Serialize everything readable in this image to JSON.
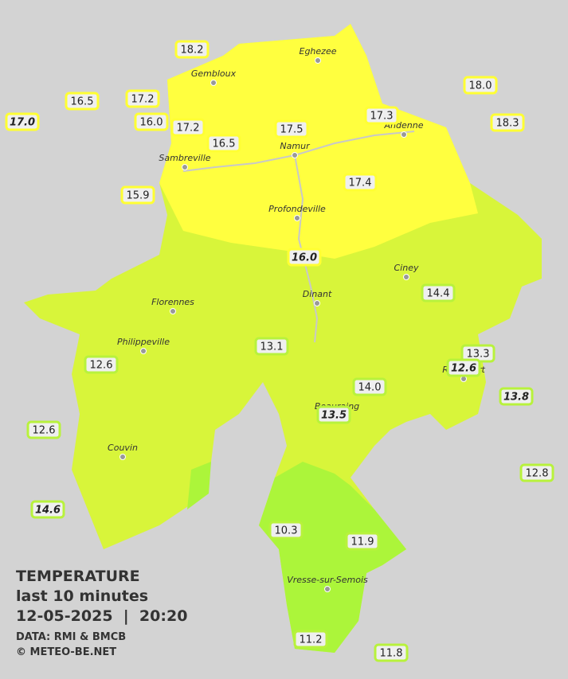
{
  "legend": {
    "title": "TEMPERATURE",
    "period": "last 10 minutes",
    "datetime": "12-05-2025  |  20:20",
    "source": "DATA: RMI & BMCB",
    "copyright": "© METEO-BE.NET"
  },
  "towns": [
    "Eghezee",
    "Gembloux",
    "Andenne",
    "Namur",
    "Sambreville",
    "Profondeville",
    "Ciney",
    "Dinant",
    "Florennes",
    "Philippeville",
    "Rochefort",
    "Beauraing",
    "Couvin",
    "Vresse-sur-Semois"
  ],
  "stations": [
    {
      "text": "18.2"
    },
    {
      "text": "16.5"
    },
    {
      "text": "17.0",
      "italic": true
    },
    {
      "text": "17.2"
    },
    {
      "text": "16.0"
    },
    {
      "text": "17.2"
    },
    {
      "text": "16.5"
    },
    {
      "text": "17.5"
    },
    {
      "text": "17.3"
    },
    {
      "text": "18.0"
    },
    {
      "text": "18.3"
    },
    {
      "text": "15.9"
    },
    {
      "text": "17.4"
    },
    {
      "text": "16.0",
      "italic": true
    },
    {
      "text": "14.4"
    },
    {
      "text": "13.1"
    },
    {
      "text": "13.3"
    },
    {
      "text": "12.6",
      "italic": true
    },
    {
      "text": "12.6"
    },
    {
      "text": "14.0"
    },
    {
      "text": "13.5",
      "italic": true
    },
    {
      "text": "13.8",
      "italic": true
    },
    {
      "text": "12.6"
    },
    {
      "text": "12.8"
    },
    {
      "text": "14.6",
      "italic": true
    },
    {
      "text": "10.3"
    },
    {
      "text": "11.9"
    },
    {
      "text": "11.2"
    },
    {
      "text": "11.8"
    }
  ]
}
